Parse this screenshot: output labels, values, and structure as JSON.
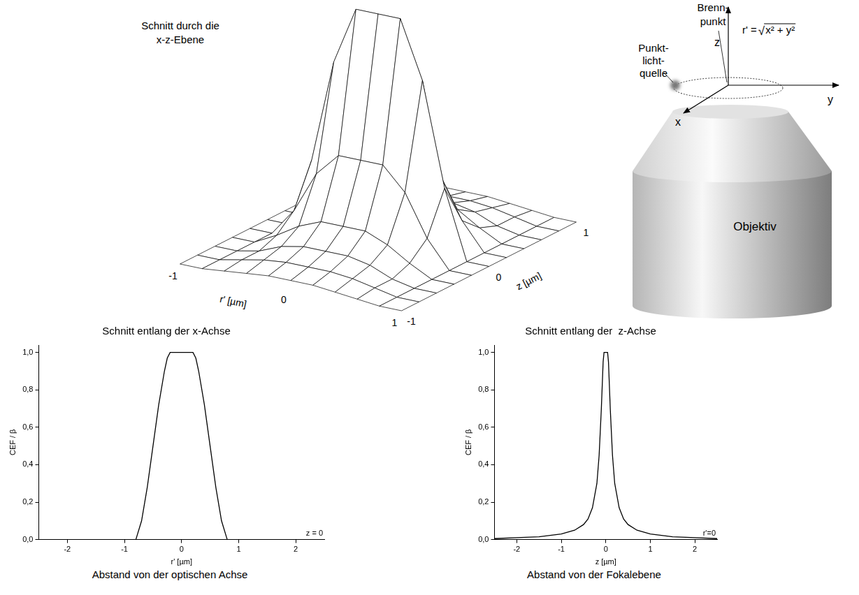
{
  "chart_data": [
    {
      "type": "surface",
      "title": [
        "Schnitt durch die",
        "x-z-Ebene"
      ],
      "x_label": "r' [µm]",
      "y_label": "z [µm]",
      "color": "#000000",
      "x": [
        -1,
        -0.8,
        -0.6,
        -0.4,
        -0.2,
        0,
        0.2,
        0.4,
        0.6,
        0.8,
        1
      ],
      "y": [
        -1,
        -0.8,
        -0.6,
        -0.4,
        -0.2,
        0,
        0.2,
        0.4,
        0.6,
        0.8,
        1
      ],
      "values": [
        [
          0,
          0,
          0.01,
          0.02,
          0.03,
          0.03,
          0.03,
          0.02,
          0.01,
          0,
          0
        ],
        [
          0,
          0,
          0.02,
          0.04,
          0.05,
          0.05,
          0.05,
          0.04,
          0.02,
          0,
          0
        ],
        [
          0,
          0,
          0.02,
          0.06,
          0.08,
          0.08,
          0.08,
          0.06,
          0.02,
          0,
          0
        ],
        [
          0,
          0,
          0.05,
          0.11,
          0.15,
          0.15,
          0.15,
          0.11,
          0.05,
          0,
          0
        ],
        [
          0,
          0,
          0.12,
          0.3,
          0.4,
          0.4,
          0.4,
          0.3,
          0.12,
          0,
          0
        ],
        [
          0,
          0,
          0.3,
          0.75,
          1,
          1,
          1,
          0.75,
          0.3,
          0,
          0
        ],
        [
          0,
          0,
          0.12,
          0.3,
          0.4,
          0.4,
          0.4,
          0.3,
          0.12,
          0,
          0
        ],
        [
          0,
          0,
          0.05,
          0.11,
          0.15,
          0.15,
          0.15,
          0.11,
          0.05,
          0,
          0
        ],
        [
          0,
          0,
          0.02,
          0.06,
          0.08,
          0.08,
          0.08,
          0.06,
          0.02,
          0,
          0
        ],
        [
          0,
          0,
          0.02,
          0.04,
          0.05,
          0.05,
          0.05,
          0.04,
          0.02,
          0,
          0
        ],
        [
          0,
          0,
          0.01,
          0.02,
          0.03,
          0.03,
          0.03,
          0.02,
          0.01,
          0,
          0
        ]
      ],
      "xlim": [
        -1,
        1
      ],
      "ylim": [
        -1,
        1
      ],
      "xticks": [
        -1,
        0,
        1
      ],
      "yticks": [
        -1,
        0,
        1
      ]
    },
    {
      "type": "line",
      "title": "Schnitt entlang der x-Achse",
      "x_label": "r' [µm]",
      "y_label": "CEF / β",
      "caption": "Abstand von der optischen Achse",
      "annotation": "z = 0",
      "color": "#000000",
      "x": [
        -2.5,
        -0.8,
        -0.7,
        -0.6,
        -0.5,
        -0.4,
        -0.3,
        -0.25,
        -0.2,
        0.2,
        0.25,
        0.3,
        0.4,
        0.5,
        0.6,
        0.7,
        0.8,
        2.5
      ],
      "values": [
        0,
        0,
        0.1,
        0.28,
        0.5,
        0.72,
        0.9,
        0.97,
        1,
        1,
        0.97,
        0.9,
        0.72,
        0.5,
        0.28,
        0.1,
        0,
        0
      ],
      "xlim": [
        -2.5,
        2.5
      ],
      "xticks": [
        -2,
        -1,
        0,
        1,
        2
      ],
      "ylim": [
        0,
        1.04
      ],
      "yticks": [
        {
          "value": 0,
          "label": "0,0"
        },
        {
          "value": 0.2,
          "label": "0,2"
        },
        {
          "value": 0.4,
          "label": "0,4"
        },
        {
          "value": 0.6,
          "label": "0,6"
        },
        {
          "value": 0.8,
          "label": "0,8"
        },
        {
          "value": 1,
          "label": "1,0"
        }
      ],
      "grid": false
    },
    {
      "type": "line",
      "title": "Schnitt entlang der  z-Achse",
      "x_label": "z [µm]",
      "y_label": "CEF / β",
      "caption": "Abstand von der Fokalebene",
      "annotation": "r'=0",
      "color": "#000000",
      "x": [
        -2.5,
        -2,
        -1.5,
        -1,
        -0.7,
        -0.5,
        -0.4,
        -0.3,
        -0.2,
        -0.15,
        -0.1,
        -0.06,
        -0.04,
        0.04,
        0.06,
        0.1,
        0.15,
        0.2,
        0.3,
        0.4,
        0.5,
        0.7,
        1,
        1.5,
        2,
        2.5
      ],
      "values": [
        0.005,
        0.01,
        0.015,
        0.03,
        0.05,
        0.08,
        0.11,
        0.17,
        0.3,
        0.45,
        0.7,
        0.95,
        1,
        1,
        0.95,
        0.7,
        0.45,
        0.3,
        0.17,
        0.11,
        0.08,
        0.05,
        0.03,
        0.015,
        0.01,
        0.005
      ],
      "xlim": [
        -2.5,
        2.5
      ],
      "xticks": [
        -2,
        -1,
        0,
        1,
        2
      ],
      "ylim": [
        0,
        1.04
      ],
      "yticks": [
        {
          "value": 0,
          "label": "0,0"
        },
        {
          "value": 0.2,
          "label": "0,2"
        },
        {
          "value": 0.4,
          "label": "0,4"
        },
        {
          "value": 0.6,
          "label": "0,6"
        },
        {
          "value": 0.8,
          "label": "0,8"
        },
        {
          "value": 1,
          "label": "1,0"
        }
      ],
      "grid": false
    }
  ],
  "diagram": {
    "focus_label": [
      "Brenn-",
      "punkt"
    ],
    "source_label": [
      "Punkt-",
      "licht-",
      "quelle"
    ],
    "radius_formula": [
      "r' =",
      "√",
      "x² + y²"
    ],
    "axes": {
      "x": "x",
      "y": "y",
      "z": "z"
    },
    "objective_label": "Objektiv"
  }
}
